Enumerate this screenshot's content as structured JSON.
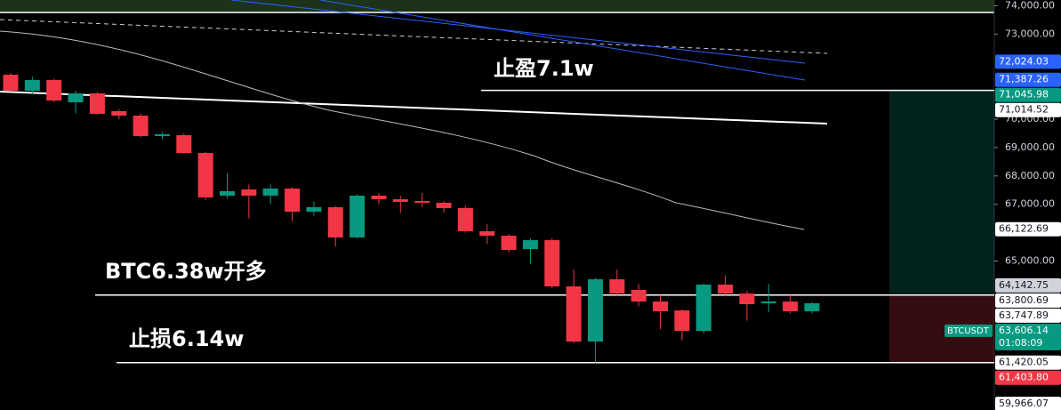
{
  "chart_data": {
    "type": "candlestick",
    "symbol": "BTCUSDT",
    "countdown": "01:08:09",
    "annotations": [
      "止盈7.1w",
      "BTC6.38w开多",
      "止损6.14w"
    ],
    "ylim": [
      59750,
      74200
    ],
    "yticks": [
      {
        "value": 74000,
        "label": "74,000.00"
      },
      {
        "value": 73000,
        "label": "73,000.00"
      },
      {
        "value": 70000,
        "label": "70,000.00"
      },
      {
        "value": 69000,
        "label": "69,000.00"
      },
      {
        "value": 68000,
        "label": "68,000.00"
      },
      {
        "value": 67000,
        "label": "67,000.00"
      },
      {
        "value": 65000,
        "label": "65,000.00"
      }
    ],
    "up_color": "#089981",
    "down_color": "#f23645",
    "candles": {
      "open": [
        71567,
        71003,
        71379,
        70596,
        70909,
        70282,
        70125,
        69404,
        69436,
        68808,
        67304,
        67523,
        67304,
        67555,
        66740,
        66897,
        65830,
        67304,
        67178,
        67116,
        67053,
        66865,
        66050,
        65893,
        65423,
        65736,
        64106,
        62163,
        64357,
        63981,
        63573,
        63260,
        62539,
        64169,
        63856,
        63511,
        63573,
        63229
      ],
      "high": [
        71630,
        71500,
        71420,
        71000,
        70960,
        70350,
        70200,
        69550,
        69500,
        68850,
        68100,
        67700,
        67700,
        67600,
        67100,
        66950,
        67350,
        67400,
        67300,
        67400,
        67100,
        66950,
        66300,
        65950,
        65800,
        65800,
        64700,
        64400,
        64700,
        64200,
        63800,
        63300,
        64200,
        64500,
        63950,
        64200,
        63800,
        63550
      ],
      "low": [
        70970,
        70900,
        70600,
        70200,
        70150,
        70000,
        69350,
        69300,
        68780,
        67150,
        67200,
        66500,
        67000,
        66400,
        66600,
        65500,
        65800,
        67000,
        66700,
        66900,
        66700,
        66000,
        65600,
        65300,
        64900,
        64050,
        62100,
        61420,
        63800,
        63400,
        62600,
        62200,
        62450,
        63800,
        62900,
        63200,
        63150,
        63150
      ],
      "close": [
        71003,
        71379,
        70658,
        70909,
        70188,
        70125,
        69404,
        69467,
        68808,
        67241,
        67461,
        67304,
        67555,
        66740,
        66897,
        65830,
        67304,
        67178,
        67084,
        67053,
        66865,
        66050,
        65893,
        65392,
        65736,
        64106,
        62163,
        64357,
        63856,
        63573,
        63229,
        62539,
        64169,
        63856,
        63480,
        63573,
        63229,
        63511
      ]
    },
    "price_labels": [
      {
        "value": 72024.03,
        "label": "72,024.03",
        "bg": "#2962ff",
        "fg": "#ffffff"
      },
      {
        "value": 71387.26,
        "label": "71,387.26",
        "bg": "#2962ff",
        "fg": "#ffffff"
      },
      {
        "value": 71045.98,
        "label": "71,045.98",
        "bg": "#089981",
        "fg": "#ffffff"
      },
      {
        "value": 71014.52,
        "label": "71,014.52",
        "bg": "#ffffff",
        "fg": "#131722"
      },
      {
        "value": 66122.69,
        "label": "66,122.69",
        "bg": "#ffffff",
        "fg": "#131722"
      },
      {
        "value": 64142.75,
        "label": "64,142.75",
        "bg": "#d1d4dc",
        "fg": "#131722"
      },
      {
        "value": 63800.69,
        "label": "63,800.69",
        "bg": "#ffffff",
        "fg": "#131722"
      },
      {
        "value": 63747.89,
        "label": "63,747.89",
        "bg": "#ffffff",
        "fg": "#131722"
      },
      {
        "value": 63606.14,
        "label": "63,606.14",
        "bg": "#089981",
        "fg": "#ffffff"
      },
      {
        "value": 61420.05,
        "label": "61,420.05",
        "bg": "#ffffff",
        "fg": "#131722"
      },
      {
        "value": 61403.8,
        "label": "61,403.80",
        "bg": "#f23645",
        "fg": "#ffffff"
      },
      {
        "value": 59966.07,
        "label": "59,966.07",
        "bg": "#ffffff",
        "fg": "#131722"
      }
    ]
  }
}
